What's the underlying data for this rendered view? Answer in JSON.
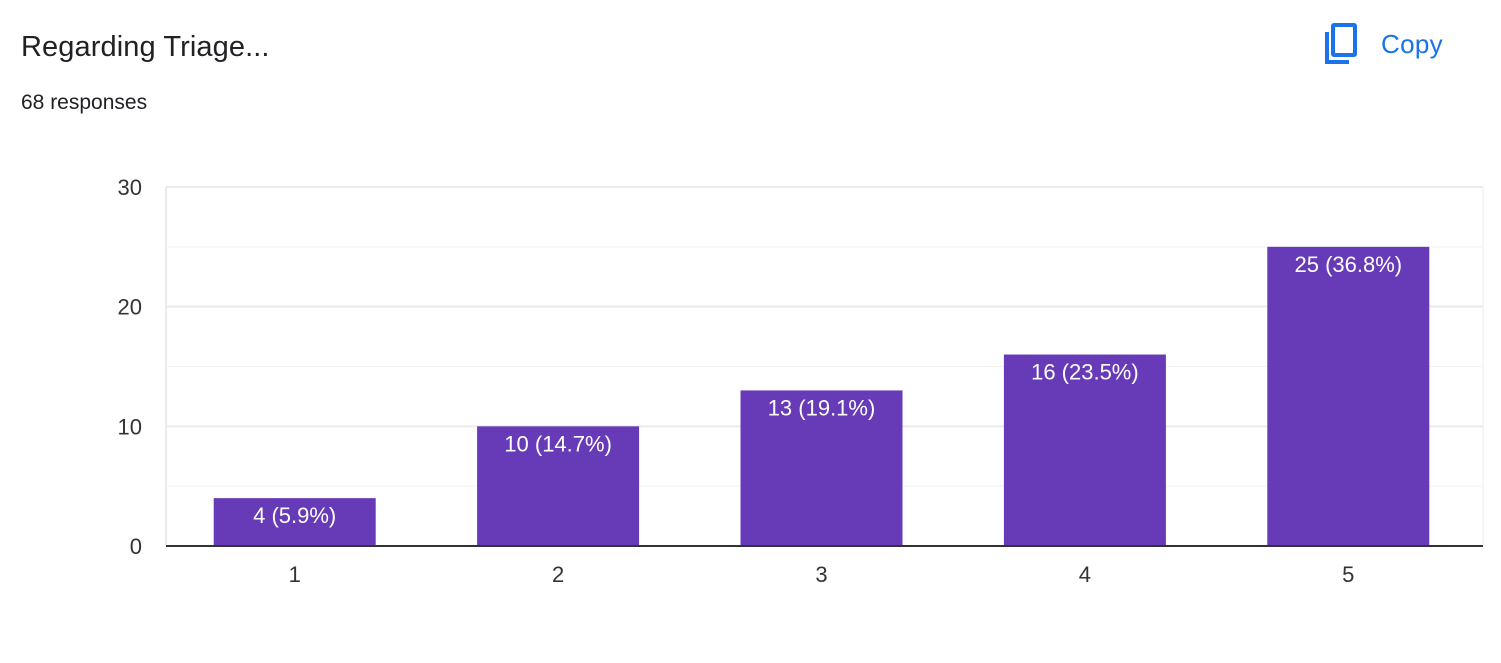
{
  "header": {
    "title": "Regarding Triage...",
    "responses": "68 responses",
    "copy_label": "Copy",
    "copy_icon": "copy-icon"
  },
  "colors": {
    "bar": "#673ab7",
    "accent": "#1a73e8",
    "grid": "#ebebeb",
    "axis": "#333333",
    "text": "#202124",
    "bar_label": "#ffffff"
  },
  "chart_data": {
    "type": "bar",
    "categories": [
      "1",
      "2",
      "3",
      "4",
      "5"
    ],
    "values": [
      4,
      10,
      13,
      16,
      25
    ],
    "data_labels": [
      "4 (5.9%)",
      "10 (14.7%)",
      "13 (19.1%)",
      "16 (23.5%)",
      "25 (36.8%)"
    ],
    "ylim": [
      0,
      30
    ],
    "yticks": [
      0,
      10,
      20,
      30
    ],
    "ytick_labels": [
      "0",
      "10",
      "20",
      "30"
    ],
    "minor_gridlines": [
      5,
      15,
      25
    ],
    "grid": true,
    "legend": "none"
  }
}
